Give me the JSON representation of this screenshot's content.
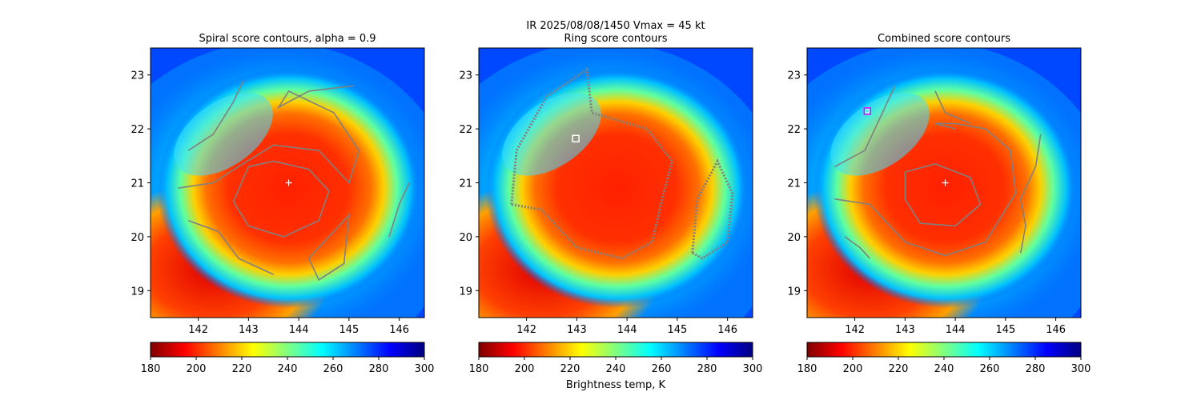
{
  "suptitle_line1": "IR  2025/08/08/1450    Vmax = 45 kt",
  "colorbar_label": "Brightness temp, K",
  "colors": {
    "jet": [
      "#7f0000",
      "#ff0000",
      "#ff8000",
      "#ffff00",
      "#80ff80",
      "#00ffff",
      "#0080ff",
      "#0000ff",
      "#00007f"
    ],
    "contour": "#808080",
    "center_marker": "#ffffff",
    "ring_marker": "#ffffff",
    "combined_marker": "#ff00ff"
  },
  "panels": [
    {
      "id": "spiral",
      "title": "Spiral score contours, alpha =  0.9"
    },
    {
      "id": "ring",
      "title": "Ring score contours"
    },
    {
      "id": "combined",
      "title": "Combined score contours"
    }
  ],
  "chart_data": {
    "type": "heatmap",
    "x_range": [
      141.05,
      146.5
    ],
    "y_range": [
      18.5,
      23.5
    ],
    "x_ticks": [
      142,
      143,
      144,
      145,
      146
    ],
    "y_ticks": [
      19,
      20,
      21,
      22,
      23
    ],
    "colorbar": {
      "range": [
        180,
        300
      ],
      "ticks": [
        180,
        200,
        220,
        240,
        260,
        280,
        300
      ],
      "cmap": "jet"
    },
    "storm_center": {
      "lon": 143.8,
      "lat": 21.0
    },
    "ring_marker": {
      "lon": 142.98,
      "lat": 21.82
    },
    "combined_marker": {
      "lon": 142.25,
      "lat": 22.33
    },
    "vmax_kt": 45
  }
}
